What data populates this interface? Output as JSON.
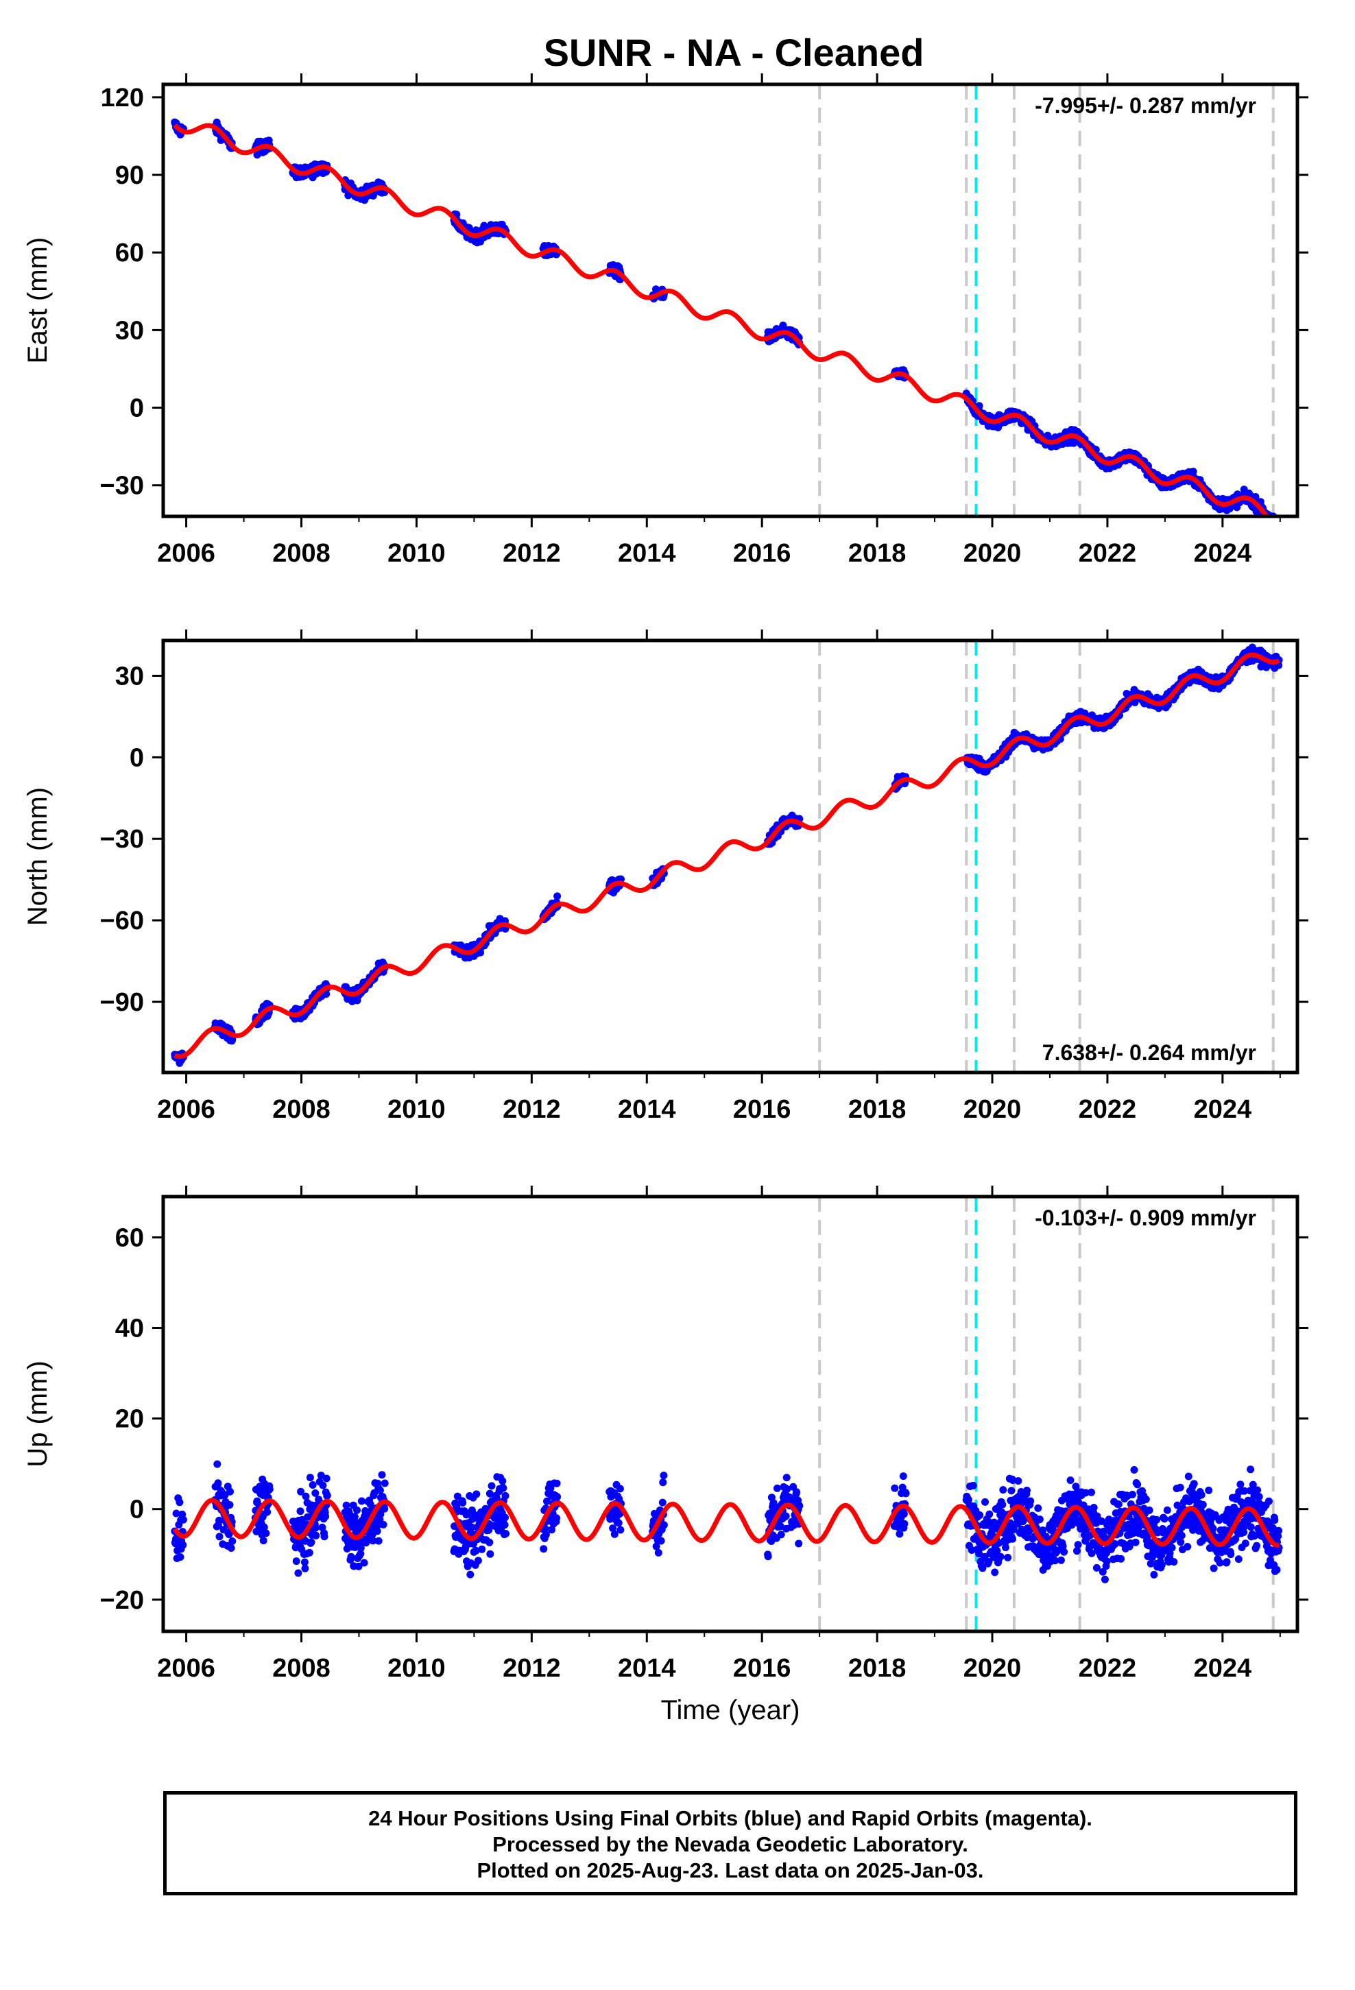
{
  "chart_data": [
    {
      "type": "scatter",
      "title": "SUNR  - NA - Cleaned",
      "ylabel": "East (mm)",
      "xlabel": "",
      "xlim": [
        2005.6,
        2025.3
      ],
      "ylim": [
        -42,
        125
      ],
      "x_ticks": [
        2006,
        2008,
        2010,
        2012,
        2014,
        2016,
        2018,
        2020,
        2022,
        2024
      ],
      "y_ticks": [
        -30,
        0,
        30,
        60,
        90,
        120
      ],
      "rate_label": "-7.995+/- 0.287 mm/yr",
      "rate_position": "top-right",
      "equipment_lines_gray": [
        2017.0,
        2019.55,
        2020.38,
        2021.52,
        2024.88
      ],
      "equipment_lines_cyan": [
        2019.72
      ],
      "series": [
        {
          "color": "#0000ff",
          "kind": "points",
          "trend": -7.995,
          "intercept": 111,
          "seasonal": 3,
          "segments": [
            [
              2005.8,
              2005.95
            ],
            [
              2006.5,
              2006.8
            ],
            [
              2007.2,
              2007.45
            ],
            [
              2007.85,
              2008.45
            ],
            [
              2008.75,
              2009.45
            ],
            [
              2010.65,
              2011.55
            ],
            [
              2012.2,
              2012.45
            ],
            [
              2013.35,
              2013.55
            ],
            [
              2014.1,
              2014.3
            ],
            [
              2016.1,
              2016.65
            ],
            [
              2018.3,
              2018.5
            ],
            [
              2019.55,
              2024.98
            ]
          ]
        },
        {
          "color": "#ff0000",
          "kind": "model",
          "trend": -7.995,
          "intercept": 111,
          "seasonal": 3
        }
      ]
    },
    {
      "type": "scatter",
      "ylabel": "North (mm)",
      "xlabel": "",
      "xlim": [
        2005.6,
        2025.3
      ],
      "ylim": [
        -116,
        43
      ],
      "x_ticks": [
        2006,
        2008,
        2010,
        2012,
        2014,
        2016,
        2018,
        2020,
        2022,
        2024
      ],
      "y_ticks": [
        -90,
        -60,
        -30,
        0,
        30
      ],
      "rate_label": "7.638+/- 0.264 mm/yr",
      "rate_position": "bottom-right",
      "equipment_lines_gray": [
        2017.0,
        2019.55,
        2020.38,
        2021.52,
        2024.88
      ],
      "equipment_lines_cyan": [
        2019.72
      ],
      "series": [
        {
          "color": "#0000ff",
          "kind": "points",
          "trend": 7.638,
          "intercept": -108,
          "seasonal": 3,
          "segments": [
            [
              2005.8,
              2005.95
            ],
            [
              2006.5,
              2006.8
            ],
            [
              2007.2,
              2007.45
            ],
            [
              2007.85,
              2008.45
            ],
            [
              2008.75,
              2009.45
            ],
            [
              2010.65,
              2011.55
            ],
            [
              2012.2,
              2012.45
            ],
            [
              2013.35,
              2013.55
            ],
            [
              2014.1,
              2014.3
            ],
            [
              2016.1,
              2016.65
            ],
            [
              2018.3,
              2018.5
            ],
            [
              2019.55,
              2024.98
            ]
          ]
        },
        {
          "color": "#ff0000",
          "kind": "model",
          "trend": 7.638,
          "intercept": -108,
          "seasonal": 3
        }
      ]
    },
    {
      "type": "scatter",
      "ylabel": "Up (mm)",
      "xlabel": "Time (year)",
      "xlim": [
        2005.6,
        2025.3
      ],
      "ylim": [
        -27,
        69
      ],
      "x_ticks": [
        2006,
        2008,
        2010,
        2012,
        2014,
        2016,
        2018,
        2020,
        2022,
        2024
      ],
      "y_ticks": [
        -20,
        0,
        20,
        40,
        60
      ],
      "rate_label": "-0.103+/- 0.909 mm/yr",
      "rate_position": "top-right",
      "equipment_lines_gray": [
        2017.0,
        2019.55,
        2020.38,
        2021.52,
        2024.88
      ],
      "equipment_lines_cyan": [
        2019.72
      ],
      "series": [
        {
          "color": "#0000ff",
          "kind": "points",
          "trend": -0.103,
          "intercept": -2,
          "seasonal": 4,
          "segments": [
            [
              2005.8,
              2005.95
            ],
            [
              2006.5,
              2006.8
            ],
            [
              2007.2,
              2007.45
            ],
            [
              2007.85,
              2008.45
            ],
            [
              2008.75,
              2009.45
            ],
            [
              2010.65,
              2011.55
            ],
            [
              2012.2,
              2012.45
            ],
            [
              2013.35,
              2013.55
            ],
            [
              2014.1,
              2014.3
            ],
            [
              2016.1,
              2016.65
            ],
            [
              2018.3,
              2018.5
            ],
            [
              2019.55,
              2024.98
            ]
          ]
        },
        {
          "color": "#ff0000",
          "kind": "model",
          "trend": -0.103,
          "intercept": -2,
          "seasonal": 4
        }
      ]
    }
  ],
  "footer": {
    "line1": "24 Hour Positions Using Final Orbits (blue) and Rapid Orbits (magenta).",
    "line2": "Processed by the Nevada Geodetic Laboratory.",
    "line3": "Plotted on 2025-Aug-23. Last data on 2025-Jan-03."
  }
}
